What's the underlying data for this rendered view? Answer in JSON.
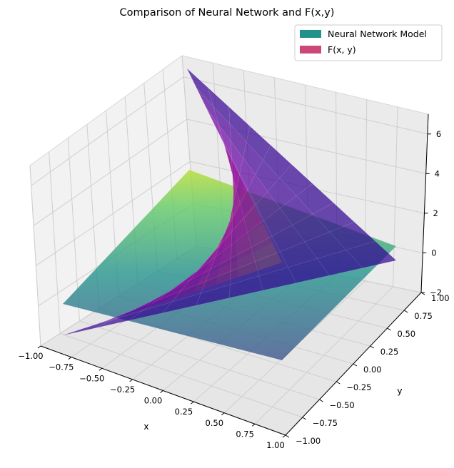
{
  "chart_data": {
    "type": "surface3d",
    "title": "Comparison of Neural Network and F(x,y)",
    "xlabel": "x",
    "ylabel": "y",
    "zlabel": "",
    "xlim": [
      -1.0,
      1.0
    ],
    "ylim": [
      -1.0,
      1.0
    ],
    "zlim": [
      -2,
      7
    ],
    "x_ticks": [
      "−1.00",
      "−0.75",
      "−0.50",
      "−0.25",
      "0.00",
      "0.25",
      "0.50",
      "0.75",
      "1.00"
    ],
    "y_ticks": [
      "−1.00",
      "−0.75",
      "−0.50",
      "−0.25",
      "0.00",
      "0.25",
      "0.50",
      "0.75",
      "1.00"
    ],
    "z_ticks": [
      "−2",
      "0",
      "2",
      "4",
      "6"
    ],
    "grid": true,
    "legend_position": "top-right",
    "series": [
      {
        "name": "Neural Network Model",
        "colormap": "viridis",
        "legend_color": "#21918c",
        "corner_values": {
          "x-1_y-1": -1.2,
          "x1_y-1": -1.3,
          "x-1_y1": 2.9,
          "x1_y1": 0.9
        }
      },
      {
        "name": "F(x, y)",
        "colormap": "plasma",
        "legend_color": "#cc4778",
        "corner_values": {
          "x-1_y-1": 0.0,
          "x1_y-1": 0.0,
          "x-1_y1": 7.0,
          "x1_y1": 0.0
        },
        "min_value": -2.0
      }
    ]
  }
}
